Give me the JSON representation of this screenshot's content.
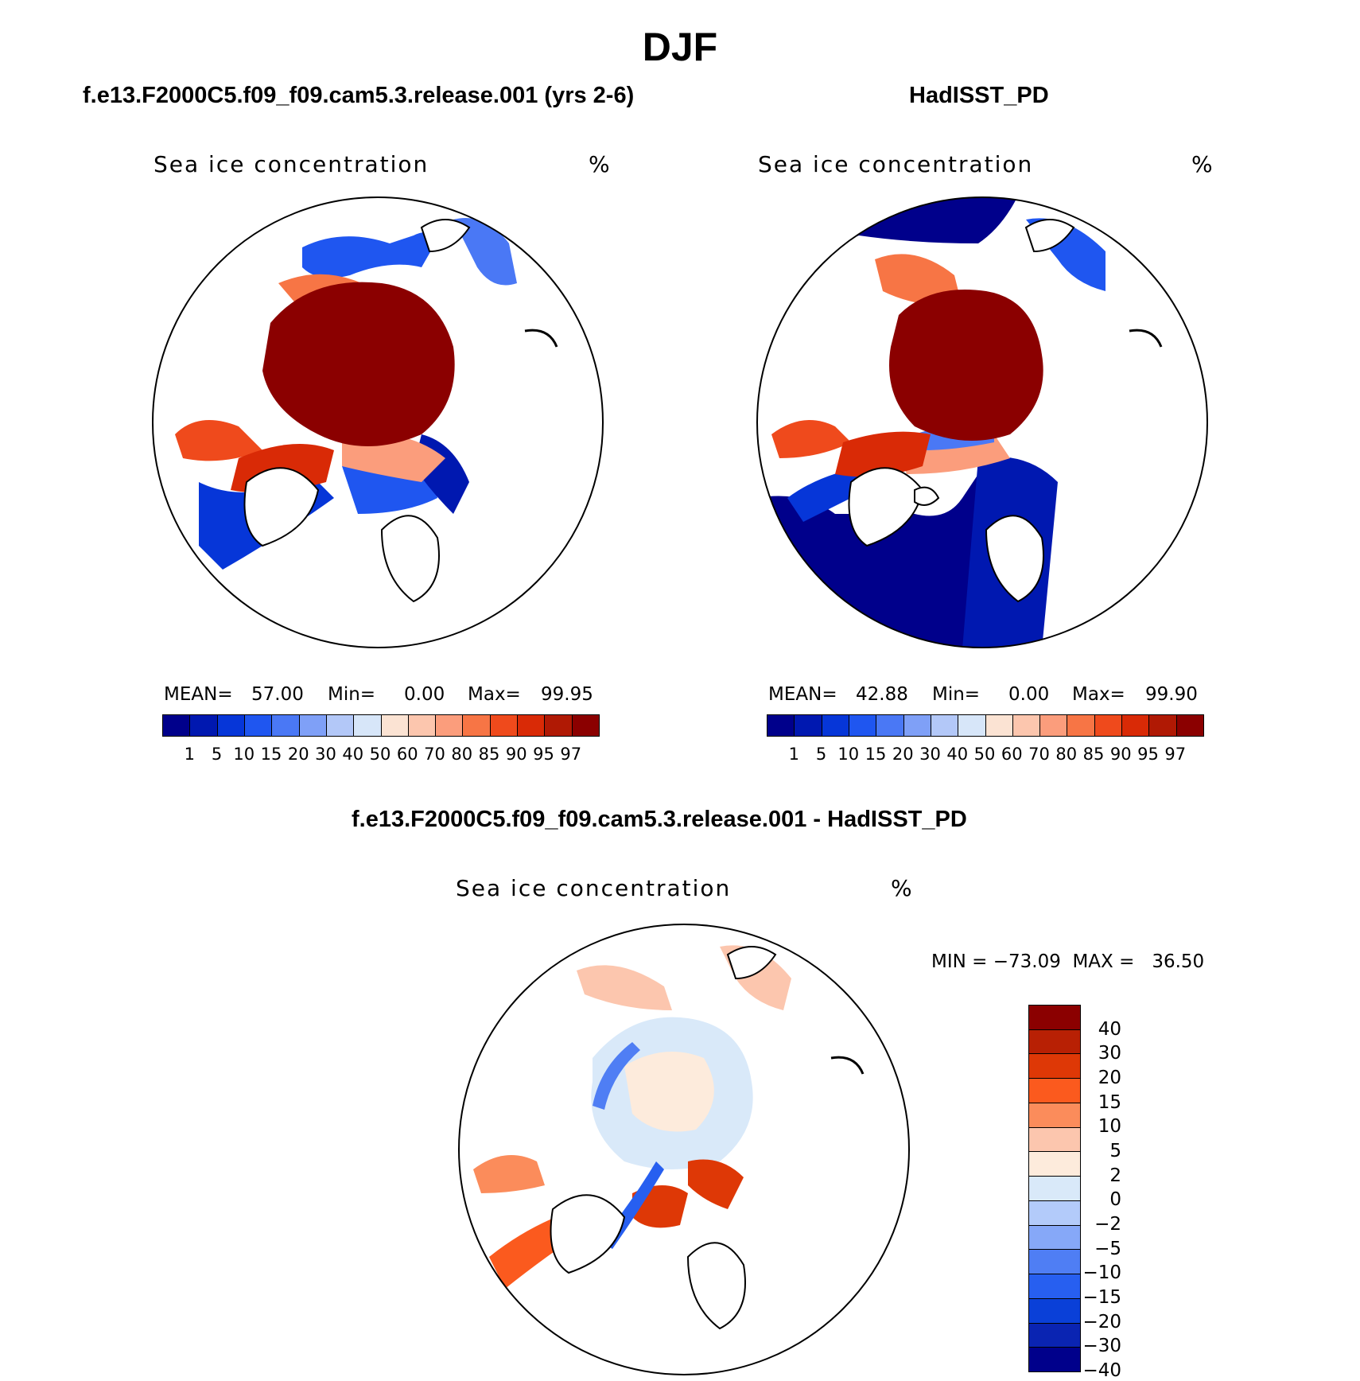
{
  "figure": {
    "season": "DJF"
  },
  "panels": [
    {
      "title": "f.e13.F2000C5.f09_f09.cam5.3.release.001 (yrs 2-6)",
      "variable": "Sea ice concentration",
      "units": "%",
      "stats": {
        "mean_label": "MEAN=",
        "mean": "57.00",
        "min_label": "Min=",
        "min": "0.00",
        "max_label": "Max=",
        "max": "99.95"
      }
    },
    {
      "title": "HadISST_PD",
      "variable": "Sea ice concentration",
      "units": "%",
      "stats": {
        "mean_label": "MEAN=",
        "mean": "42.88",
        "min_label": "Min=",
        "min": "0.00",
        "max_label": "Max=",
        "max": "99.90"
      }
    },
    {
      "title": "f.e13.F2000C5.f09_f09.cam5.3.release.001 - HadISST_PD",
      "variable": "Sea ice concentration",
      "units": "%",
      "stats": {
        "text": "MIN = −73.09  MAX =   36.50"
      }
    }
  ],
  "abs_colorbar": {
    "colors": [
      "#00008b",
      "#0018b0",
      "#0636d8",
      "#1f56f0",
      "#4a78f5",
      "#7fa0f7",
      "#b3c8f8",
      "#d7e6f9",
      "#fbe3d3",
      "#fcc6ae",
      "#fb9d7c",
      "#f77545",
      "#ef4a1c",
      "#d92a06",
      "#b01904",
      "#8b0000"
    ],
    "labels": [
      "1",
      "5",
      "10",
      "15",
      "20",
      "30",
      "40",
      "50",
      "60",
      "70",
      "80",
      "85",
      "90",
      "95",
      "97"
    ]
  },
  "diff_colorbar": {
    "colors_top_to_bottom": [
      "#8b0000",
      "#b82004",
      "#de3806",
      "#fb5a1e",
      "#fb8c5b",
      "#fcc6ae",
      "#fdebdc",
      "#d9e9f9",
      "#b3cbfa",
      "#86a8f8",
      "#4f7ef4",
      "#275ff0",
      "#0a40d8",
      "#0a24b2",
      "#00008b"
    ],
    "labels_top_to_bottom": [
      "40",
      "30",
      "20",
      "15",
      "10",
      "5",
      "2",
      "0",
      "−2",
      "−5",
      "−10",
      "−15",
      "−20",
      "−30",
      "−40"
    ]
  }
}
